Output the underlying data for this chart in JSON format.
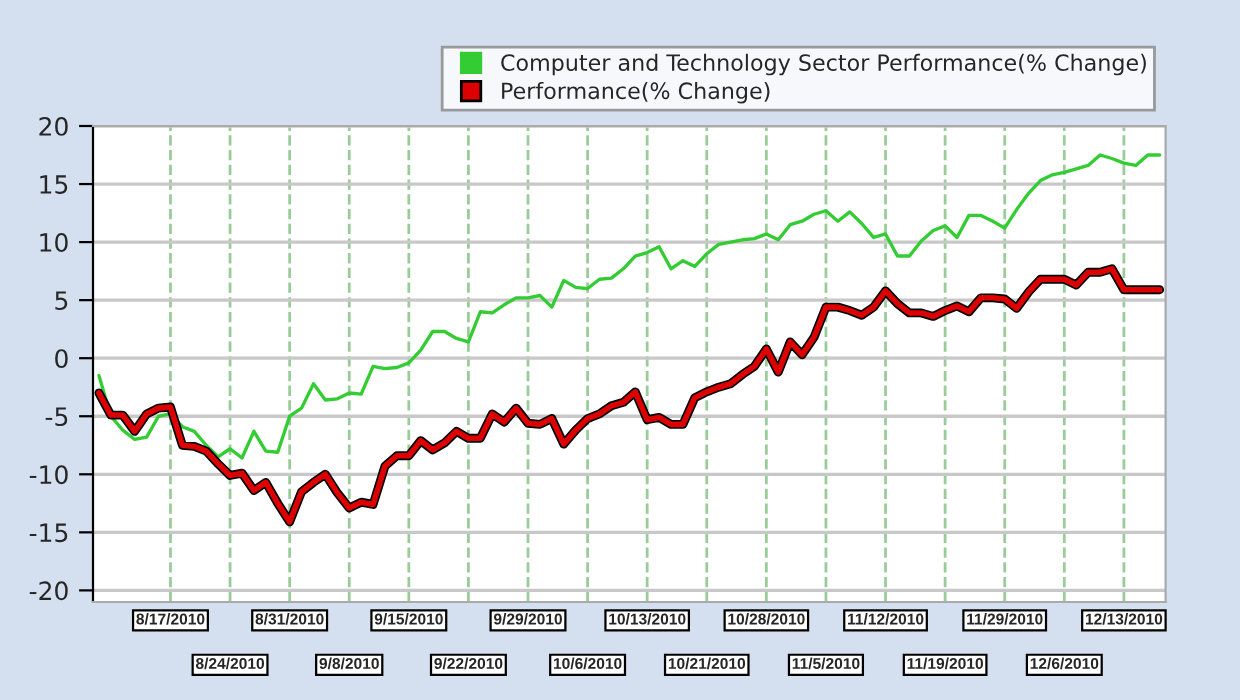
{
  "chart_data": {
    "type": "line",
    "categories": [
      null,
      null,
      null,
      null,
      null,
      null,
      "8/17/2010",
      null,
      null,
      null,
      null,
      "8/24/2010",
      null,
      null,
      null,
      null,
      "8/31/2010",
      null,
      null,
      null,
      null,
      "9/8/2010",
      null,
      null,
      null,
      null,
      "9/15/2010",
      null,
      null,
      null,
      null,
      "9/22/2010",
      null,
      null,
      null,
      null,
      "9/29/2010",
      null,
      null,
      null,
      null,
      "10/6/2010",
      null,
      null,
      null,
      null,
      "10/13/2010",
      null,
      null,
      null,
      null,
      "10/21/2010",
      null,
      null,
      null,
      null,
      "10/28/2010",
      null,
      null,
      null,
      null,
      "11/5/2010",
      null,
      null,
      null,
      null,
      "11/12/2010",
      null,
      null,
      null,
      null,
      "11/19/2010",
      null,
      null,
      null,
      null,
      "11/29/2010",
      null,
      null,
      null,
      null,
      "12/6/2010",
      null,
      null,
      null,
      null,
      "12/13/2010",
      null,
      null,
      null
    ],
    "series": [
      {
        "name": "Computer and Technology Sector Performance(% Change)",
        "color": "#33cc33",
        "values": [
          -1.5,
          -5,
          -6.2,
          -7,
          -6.8,
          -5,
          -4.8,
          -5.9,
          -6.3,
          -7.5,
          -8.5,
          -7.8,
          -8.6,
          -6.3,
          -8,
          -8.1,
          -5,
          -4.3,
          -2.2,
          -3.6,
          -3.5,
          -3,
          -3.1,
          -0.7,
          -0.9,
          -0.8,
          -0.4,
          0.7,
          2.3,
          2.3,
          1.7,
          1.4,
          4,
          3.9,
          4.6,
          5.2,
          5.2,
          5.4,
          4.4,
          6.7,
          6.1,
          6,
          6.8,
          6.9,
          7.7,
          8.8,
          9.1,
          9.6,
          7.7,
          8.4,
          7.9,
          9,
          9.8,
          10,
          10.2,
          10.3,
          10.7,
          10.2,
          11.5,
          11.8,
          12.4,
          12.7,
          11.8,
          12.6,
          11.6,
          10.4,
          10.7,
          8.8,
          8.8,
          10.1,
          11,
          11.4,
          10.4,
          12.3,
          12.3,
          11.8,
          11.2,
          12.8,
          14.2,
          15.3,
          15.8,
          16,
          16.3,
          16.6,
          17.5,
          17.2,
          16.8,
          16.6,
          17.5,
          17.5
        ]
      },
      {
        "name": "Performance(% Change)",
        "color": "#dd0000",
        "values": [
          -3,
          -4.9,
          -4.9,
          -6.3,
          -4.8,
          -4.3,
          -4.2,
          -7.5,
          -7.6,
          -8,
          -9.1,
          -10.1,
          -9.9,
          -11.4,
          -10.7,
          -12.5,
          -14.1,
          -11.5,
          -10.7,
          -10,
          -11.6,
          -12.9,
          -12.4,
          -12.6,
          -9.3,
          -8.4,
          -8.4,
          -7.1,
          -7.9,
          -7.3,
          -6.3,
          -6.9,
          -6.9,
          -4.8,
          -5.5,
          -4.3,
          -5.6,
          -5.7,
          -5.2,
          -7.4,
          -6.2,
          -5.2,
          -4.8,
          -4.1,
          -3.8,
          -2.9,
          -5.3,
          -5.1,
          -5.7,
          -5.7,
          -3.4,
          -2.9,
          -2.5,
          -2.2,
          -1.4,
          -0.7,
          0.8,
          -1.2,
          1.4,
          0.3,
          1.8,
          4.4,
          4.4,
          4.1,
          3.7,
          4.4,
          5.8,
          4.7,
          3.9,
          3.9,
          3.6,
          4.1,
          4.5,
          4,
          5.2,
          5.2,
          5.1,
          4.3,
          5.7,
          6.8,
          6.8,
          6.8,
          6.3,
          7.4,
          7.4,
          7.7,
          5.9,
          5.9,
          5.9,
          5.9
        ]
      }
    ],
    "ylim": [
      -21,
      20
    ],
    "yticks": [
      -20,
      -15,
      -10,
      -5,
      0,
      5,
      10,
      15,
      20
    ],
    "grid": true,
    "legend": "top right"
  }
}
